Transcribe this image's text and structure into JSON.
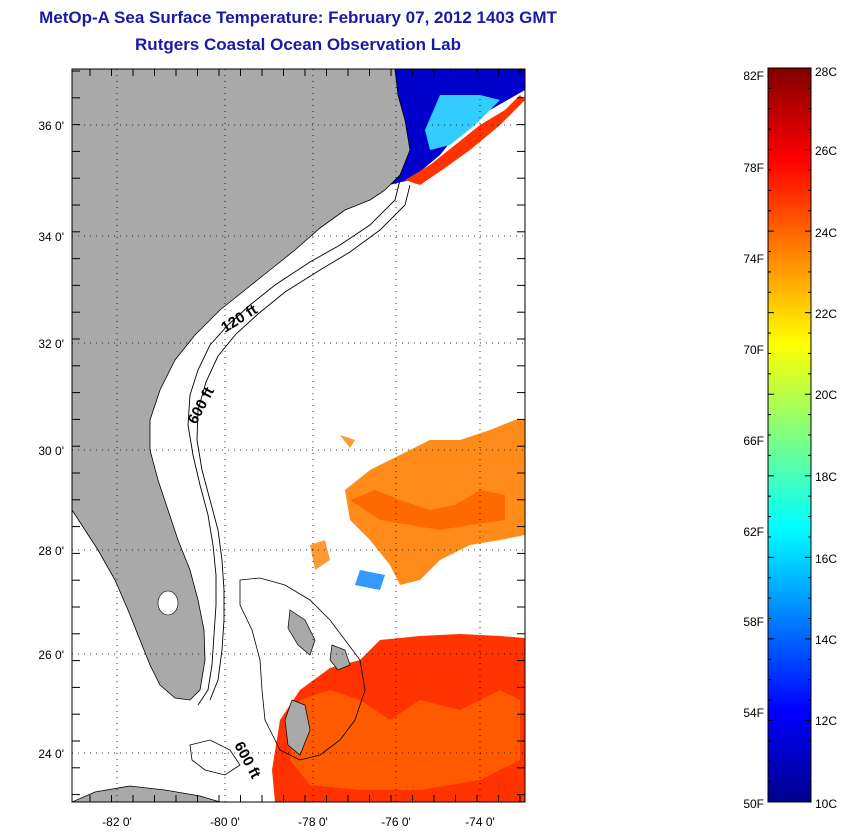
{
  "title": "MetOp-A Sea Surface Temperature:  February 07, 2012 1403 GMT",
  "subtitle": "Rutgers Coastal Ocean Observation Lab",
  "map": {
    "lat_labels": [
      "36 0'",
      "34 0'",
      "32 0'",
      "30 0'",
      "28 0'",
      "26 0'",
      "24 0'"
    ],
    "lon_labels": [
      "-82 0'",
      "-80 0'",
      "-78 0'",
      "-76 0'",
      "-74 0'"
    ],
    "contour_labels": [
      "120 ft",
      "600 ft",
      "600 ft"
    ],
    "colors": {
      "land": "#a9a9a9",
      "ocean_nodata": "#ffffff"
    }
  },
  "colorbar": {
    "fahrenheit_labels": [
      "82F",
      "78F",
      "74F",
      "70F",
      "66F",
      "62F",
      "58F",
      "54F",
      "50F"
    ],
    "celsius_labels": [
      "28C",
      "26C",
      "24C",
      "22C",
      "20C",
      "18C",
      "16C",
      "14C",
      "12C",
      "10C"
    ],
    "range_c": [
      10,
      28
    ],
    "range_f": [
      50,
      82.4
    ],
    "colormap": [
      "#00008b",
      "#0000ff",
      "#0080ff",
      "#00ffff",
      "#80ff80",
      "#ffff00",
      "#ff8000",
      "#ff0000",
      "#800000"
    ]
  }
}
